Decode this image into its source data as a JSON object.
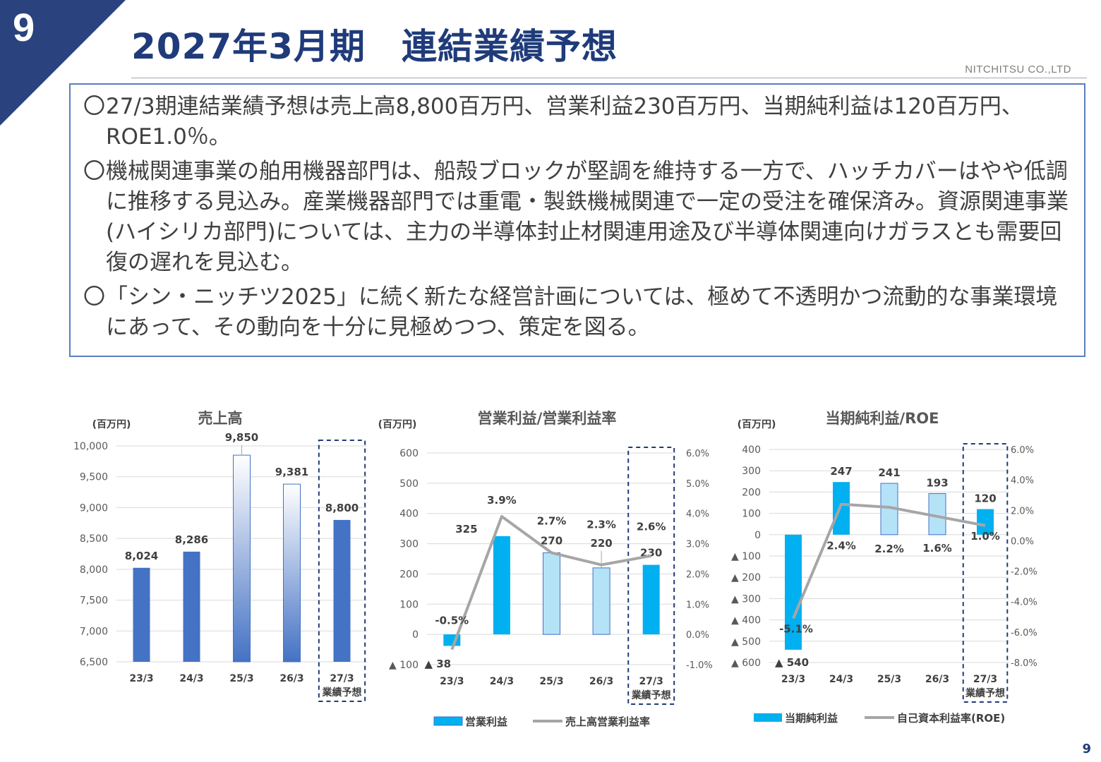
{
  "slide": {
    "number": "9",
    "title": "2027年3月期　連結業績予想",
    "company": "NITCHITSU CO.,LTD",
    "page_number": "9"
  },
  "summary": {
    "bullets": [
      {
        "mark": "〇",
        "text": "27/3期連結業績予想は売上高8,800百万円、営業利益230百万円、当期純利益は120百万円、ROE1.0％。"
      },
      {
        "mark": "〇",
        "text": "機械関連事業の舶用機器部門は、船殻ブロックが堅調を維持する一方で、ハッチカバーはやや低調に推移する見込み。産業機器部門では重電・製鉄機械関連で一定の受注を確保済み。資源関連事業(ハイシリカ部門)については、主力の半導体封止材関連用途及び半導体関連向けガラスとも需要回復の遅れを見込む。"
      },
      {
        "mark": "〇",
        "text": "「シン・ニッチツ2025」に続く新たな経営計画については、極めて不透明かつ流動的な事業環境にあって、その動向を十分に見極めつつ、策定を図る。"
      }
    ]
  },
  "colors": {
    "navy": "#1f3b7a",
    "bar_solid": "#4472c4",
    "bar_cyan": "#00b0f0",
    "bar_light": "#b4e3f8",
    "line_gray": "#a6a6a6"
  },
  "chart_data": [
    {
      "type": "bar",
      "title": "売上高",
      "unit_label": "(百万円)",
      "categories": [
        "23/3",
        "24/3",
        "25/3",
        "26/3",
        "27/3"
      ],
      "forecast_label": "業績予想",
      "values": [
        8024,
        8286,
        9850,
        9381,
        8800
      ],
      "value_labels": [
        "8,024",
        "8,286",
        "9,850",
        "9,381",
        "8,800"
      ],
      "ylim": [
        6500,
        10000
      ],
      "y_ticks": [
        6500,
        7000,
        7500,
        8000,
        8500,
        9000,
        9500,
        10000
      ],
      "y_tick_labels": [
        "6,500",
        "7,000",
        "7,500",
        "8,000",
        "8,500",
        "9,000",
        "9,500",
        "10,000"
      ],
      "grid": true
    },
    {
      "type": "bar+line",
      "title": "営業利益/営業利益率",
      "unit_label": "(百万円)",
      "categories": [
        "23/3",
        "24/3",
        "25/3",
        "26/3",
        "27/3"
      ],
      "forecast_label": "業績予想",
      "series": [
        {
          "name": "営業利益",
          "values": [
            -38,
            325,
            270,
            220,
            230
          ],
          "value_labels": [
            "▲ 38",
            "325",
            "270",
            "220",
            "230"
          ]
        },
        {
          "name": "売上高営業利益率",
          "axis": "right",
          "values": [
            -0.5,
            3.9,
            2.7,
            2.3,
            2.6
          ],
          "value_labels": [
            "-0.5%",
            "3.9%",
            "2.7%",
            "2.3%",
            "2.6%"
          ]
        }
      ],
      "ylim": [
        -100,
        600
      ],
      "y_ticks": [
        -100,
        0,
        100,
        200,
        300,
        400,
        500,
        600
      ],
      "y_tick_labels": [
        "▲ 100",
        "0",
        "100",
        "200",
        "300",
        "400",
        "500",
        "600"
      ],
      "y2lim": [
        -1.0,
        6.0
      ],
      "y2_ticks": [
        -1,
        0,
        1,
        2,
        3,
        4,
        5,
        6
      ],
      "y2_tick_labels": [
        "-1.0%",
        "0.0%",
        "1.0%",
        "2.0%",
        "3.0%",
        "4.0%",
        "5.0%",
        "6.0%"
      ],
      "legend": "bottom",
      "grid": true
    },
    {
      "type": "bar+line",
      "title": "当期純利益/ROE",
      "unit_label": "(百万円)",
      "categories": [
        "23/3",
        "24/3",
        "25/3",
        "26/3",
        "27/3"
      ],
      "forecast_label": "業績予想",
      "series": [
        {
          "name": "当期純利益",
          "values": [
            -540,
            247,
            241,
            193,
            120
          ],
          "value_labels": [
            "▲ 540",
            "247",
            "241",
            "193",
            "120"
          ]
        },
        {
          "name": "自己資本利益率(ROE)",
          "axis": "right",
          "values": [
            -5.1,
            2.4,
            2.2,
            1.6,
            1.0
          ],
          "value_labels": [
            "-5.1%",
            "2.4%",
            "2.2%",
            "1.6%",
            "1.0%"
          ]
        }
      ],
      "ylim": [
        -600,
        400
      ],
      "y_ticks": [
        -600,
        -500,
        -400,
        -300,
        -200,
        -100,
        0,
        100,
        200,
        300,
        400
      ],
      "y_tick_labels": [
        "▲ 600",
        "▲ 500",
        "▲ 400",
        "▲ 300",
        "▲ 200",
        "▲ 100",
        "0",
        "100",
        "200",
        "300",
        "400"
      ],
      "y2lim": [
        -8.0,
        6.0
      ],
      "y2_ticks": [
        -8,
        -6,
        -4,
        -2,
        0,
        2,
        4,
        6
      ],
      "y2_tick_labels": [
        "-8.0%",
        "-6.0%",
        "-4.0%",
        "-2.0%",
        "0.0%",
        "2.0%",
        "4.0%",
        "6.0%"
      ],
      "legend": "bottom",
      "grid": true
    }
  ]
}
